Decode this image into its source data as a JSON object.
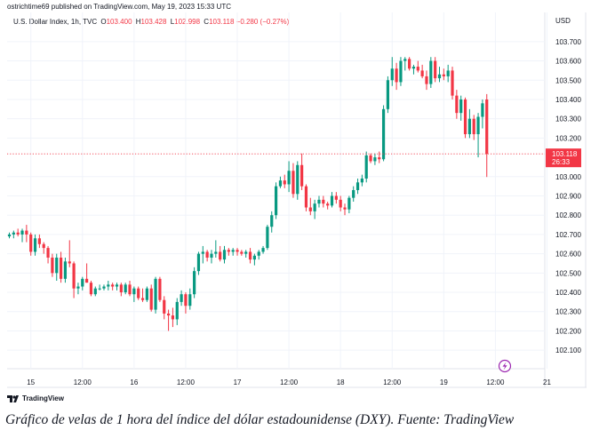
{
  "publisher": "ostrichtime69 published on TradingView.com, May 19, 2023 15:33 UTC",
  "legend": {
    "symbol": "U.S. Dollar Index, 1h, TVC",
    "o_label": "O",
    "o_value": "103.400",
    "h_label": "H",
    "h_value": "103.428",
    "l_label": "L",
    "l_value": "102.998",
    "c_label": "C",
    "c_value": "103.118",
    "change": "−0.280 (−0.27%)"
  },
  "currency": "USD",
  "price_tag": {
    "value": "103.118",
    "countdown": "26:33"
  },
  "logo_text": "TradingView",
  "caption": "Gráfico de velas de 1 hora del índice del dólar estadounidense (DXY). Fuente: TradingView",
  "colors": {
    "up": "#089981",
    "down": "#f23645",
    "grid": "#f0f3fa",
    "text": "#131722",
    "flash": "#9c27b0"
  },
  "icons": {
    "flash": "lightning-icon",
    "logo": "tradingview-logo-icon"
  },
  "chart_data": {
    "type": "candlestick",
    "timeframe": "1h",
    "ylim": [
      102.05,
      103.75
    ],
    "yticks": [
      "103.700",
      "103.600",
      "103.500",
      "103.400",
      "103.300",
      "103.200",
      "103.000",
      "102.900",
      "102.800",
      "102.700",
      "102.600",
      "102.500",
      "102.400",
      "102.300",
      "102.200",
      "102.100"
    ],
    "xticks": [
      {
        "label": "15",
        "bar": 5
      },
      {
        "label": "12:00",
        "bar": 17
      },
      {
        "label": "16",
        "bar": 29
      },
      {
        "label": "12:00",
        "bar": 41
      },
      {
        "label": "17",
        "bar": 53
      },
      {
        "label": "12:00",
        "bar": 65
      },
      {
        "label": "18",
        "bar": 77
      },
      {
        "label": "12:00",
        "bar": 89
      },
      {
        "label": "19",
        "bar": 101
      },
      {
        "label": "12:00",
        "bar": 113
      },
      {
        "label": "21",
        "bar": 125
      }
    ],
    "last_price": 103.118,
    "ohlc": [
      [
        102.69,
        102.71,
        102.68,
        102.7
      ],
      [
        102.7,
        102.72,
        102.68,
        102.71
      ],
      [
        102.71,
        102.73,
        102.69,
        102.7
      ],
      [
        102.7,
        102.73,
        102.66,
        102.72
      ],
      [
        102.72,
        102.75,
        102.66,
        102.7
      ],
      [
        102.7,
        102.71,
        102.59,
        102.61
      ],
      [
        102.61,
        102.7,
        102.59,
        102.68
      ],
      [
        102.68,
        102.7,
        102.63,
        102.65
      ],
      [
        102.65,
        102.66,
        102.6,
        102.63
      ],
      [
        102.63,
        102.64,
        102.55,
        102.58
      ],
      [
        102.58,
        102.6,
        102.48,
        102.5
      ],
      [
        102.5,
        102.6,
        102.46,
        102.58
      ],
      [
        102.58,
        102.61,
        102.45,
        102.47
      ],
      [
        102.47,
        102.58,
        102.45,
        102.56
      ],
      [
        102.56,
        102.67,
        102.53,
        102.55
      ],
      [
        102.55,
        102.56,
        102.37,
        102.42
      ],
      [
        102.42,
        102.45,
        102.39,
        102.43
      ],
      [
        102.43,
        102.48,
        102.41,
        102.47
      ],
      [
        102.47,
        102.55,
        102.45,
        102.45
      ],
      [
        102.45,
        102.46,
        102.38,
        102.39
      ],
      [
        102.39,
        102.43,
        102.38,
        102.42
      ],
      [
        102.42,
        102.44,
        102.41,
        102.42
      ],
      [
        102.42,
        102.44,
        102.41,
        102.43
      ],
      [
        102.43,
        102.46,
        102.41,
        102.44
      ],
      [
        102.44,
        102.45,
        102.41,
        102.43
      ],
      [
        102.43,
        102.45,
        102.41,
        102.44
      ],
      [
        102.44,
        102.45,
        102.38,
        102.4
      ],
      [
        102.4,
        102.45,
        102.39,
        102.44
      ],
      [
        102.44,
        102.46,
        102.38,
        102.39
      ],
      [
        102.39,
        102.43,
        102.35,
        102.42
      ],
      [
        102.42,
        102.43,
        102.36,
        102.37
      ],
      [
        102.37,
        102.42,
        102.35,
        102.36
      ],
      [
        102.36,
        102.43,
        102.35,
        102.42
      ],
      [
        102.42,
        102.44,
        102.3,
        102.31
      ],
      [
        102.31,
        102.48,
        102.29,
        102.47
      ],
      [
        102.47,
        102.48,
        102.35,
        102.36
      ],
      [
        102.36,
        102.38,
        102.26,
        102.29
      ],
      [
        102.29,
        102.31,
        102.2,
        102.28
      ],
      [
        102.28,
        102.32,
        102.22,
        102.26
      ],
      [
        102.26,
        102.37,
        102.23,
        102.35
      ],
      [
        102.35,
        102.41,
        102.33,
        102.39
      ],
      [
        102.39,
        102.4,
        102.29,
        102.33
      ],
      [
        102.33,
        102.42,
        102.31,
        102.39
      ],
      [
        102.39,
        102.53,
        102.37,
        102.51
      ],
      [
        102.51,
        102.61,
        102.49,
        102.6
      ],
      [
        102.6,
        102.64,
        102.55,
        102.61
      ],
      [
        102.61,
        102.62,
        102.56,
        102.58
      ],
      [
        102.58,
        102.62,
        102.55,
        102.6
      ],
      [
        102.6,
        102.67,
        102.58,
        102.61
      ],
      [
        102.61,
        102.64,
        102.56,
        102.57
      ],
      [
        102.57,
        102.64,
        102.55,
        102.62
      ],
      [
        102.62,
        102.63,
        102.59,
        102.61
      ],
      [
        102.61,
        102.63,
        102.59,
        102.62
      ],
      [
        102.62,
        102.63,
        102.59,
        102.61
      ],
      [
        102.61,
        102.62,
        102.59,
        102.6
      ],
      [
        102.6,
        102.62,
        102.58,
        102.61
      ],
      [
        102.61,
        102.63,
        102.55,
        102.57
      ],
      [
        102.57,
        102.6,
        102.54,
        102.59
      ],
      [
        102.59,
        102.62,
        102.57,
        102.61
      ],
      [
        102.61,
        102.64,
        102.6,
        102.63
      ],
      [
        102.63,
        102.75,
        102.62,
        102.74
      ],
      [
        102.74,
        102.82,
        102.71,
        102.8
      ],
      [
        102.8,
        102.97,
        102.78,
        102.95
      ],
      [
        102.95,
        103.0,
        102.94,
        102.98
      ],
      [
        102.98,
        103.01,
        102.94,
        102.96
      ],
      [
        102.96,
        103.08,
        102.92,
        103.03
      ],
      [
        103.03,
        103.07,
        102.89,
        102.91
      ],
      [
        102.91,
        103.08,
        102.88,
        103.06
      ],
      [
        103.06,
        103.12,
        102.93,
        102.95
      ],
      [
        102.95,
        102.96,
        102.82,
        102.84
      ],
      [
        102.84,
        102.89,
        102.8,
        102.82
      ],
      [
        102.82,
        102.88,
        102.78,
        102.86
      ],
      [
        102.86,
        102.9,
        102.84,
        102.88
      ],
      [
        102.88,
        102.9,
        102.84,
        102.86
      ],
      [
        102.86,
        102.87,
        102.83,
        102.85
      ],
      [
        102.85,
        102.92,
        102.84,
        102.9
      ],
      [
        102.9,
        102.92,
        102.86,
        102.88
      ],
      [
        102.88,
        102.9,
        102.82,
        102.84
      ],
      [
        102.84,
        102.86,
        102.8,
        102.83
      ],
      [
        102.83,
        102.9,
        102.81,
        102.89
      ],
      [
        102.89,
        102.95,
        102.87,
        102.93
      ],
      [
        102.93,
        102.99,
        102.91,
        102.97
      ],
      [
        102.97,
        103.01,
        102.95,
        102.99
      ],
      [
        102.99,
        103.13,
        102.97,
        103.11
      ],
      [
        103.11,
        103.12,
        103.07,
        103.08
      ],
      [
        103.08,
        103.12,
        103.06,
        103.1
      ],
      [
        103.1,
        103.13,
        103.07,
        103.09
      ],
      [
        103.09,
        103.37,
        103.08,
        103.35
      ],
      [
        103.35,
        103.52,
        103.33,
        103.5
      ],
      [
        103.5,
        103.62,
        103.47,
        103.56
      ],
      [
        103.56,
        103.59,
        103.45,
        103.49
      ],
      [
        103.49,
        103.62,
        103.47,
        103.6
      ],
      [
        103.6,
        103.62,
        103.55,
        103.61
      ],
      [
        103.61,
        103.62,
        103.55,
        103.56
      ],
      [
        103.56,
        103.58,
        103.53,
        103.57
      ],
      [
        103.57,
        103.6,
        103.54,
        103.55
      ],
      [
        103.55,
        103.58,
        103.51,
        103.52
      ],
      [
        103.52,
        103.55,
        103.45,
        103.48
      ],
      [
        103.48,
        103.62,
        103.46,
        103.6
      ],
      [
        103.6,
        103.62,
        103.49,
        103.51
      ],
      [
        103.51,
        103.57,
        103.49,
        103.53
      ],
      [
        103.53,
        103.56,
        103.5,
        103.52
      ],
      [
        103.52,
        103.58,
        103.49,
        103.55
      ],
      [
        103.55,
        103.57,
        103.4,
        103.42
      ],
      [
        103.42,
        103.45,
        103.3,
        103.33
      ],
      [
        103.33,
        103.42,
        103.29,
        103.4
      ],
      [
        103.4,
        103.41,
        103.2,
        103.22
      ],
      [
        103.22,
        103.35,
        103.2,
        103.3
      ],
      [
        103.3,
        103.32,
        103.19,
        103.22
      ],
      [
        103.22,
        103.33,
        103.1,
        103.31
      ],
      [
        103.31,
        103.4,
        103.25,
        103.38
      ],
      [
        103.4,
        103.428,
        102.998,
        103.118
      ]
    ]
  }
}
